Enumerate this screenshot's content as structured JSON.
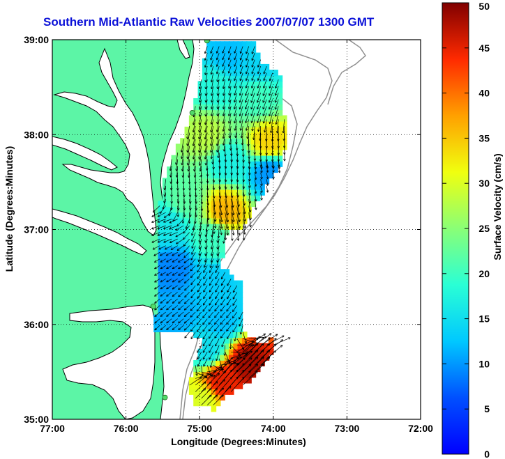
{
  "title": "Southern Mid-Atlantic Raw Velocities 2007/07/07 1300 GMT",
  "xlabel": "Longitude (Degrees:Minutes)",
  "ylabel": "Latitude (Degrees:Minutes)",
  "colorbar_label": "Surface Velocity (cm/s)",
  "map": {
    "lon_range": [
      -77,
      -72
    ],
    "lat_range": [
      35,
      39
    ],
    "x_ticks": [
      {
        "value": -77,
        "label": "77:00"
      },
      {
        "value": -76,
        "label": "76:00"
      },
      {
        "value": -75,
        "label": "75:00"
      },
      {
        "value": -74,
        "label": "74:00"
      },
      {
        "value": -73,
        "label": "73:00"
      },
      {
        "value": -72,
        "label": "72:00"
      }
    ],
    "y_ticks": [
      {
        "value": 39,
        "label": "39:00"
      },
      {
        "value": 38,
        "label": "38:00"
      },
      {
        "value": 37,
        "label": "37:00"
      },
      {
        "value": 36,
        "label": "36:00"
      },
      {
        "value": 35,
        "label": "35:00"
      }
    ],
    "grid": "dotted",
    "land_color": "#5cf5a6",
    "ocean_color": "#ffffff",
    "stations": [
      {
        "lon": -74.9,
        "lat": 38.99
      },
      {
        "lon": -75.1,
        "lat": 38.23
      },
      {
        "lon": -75.63,
        "lat": 36.19
      },
      {
        "lon": -75.47,
        "lat": 35.23
      }
    ]
  },
  "colorbar": {
    "min": 0,
    "max": 50,
    "ticks": [
      0,
      5,
      10,
      15,
      20,
      25,
      30,
      35,
      40,
      45,
      50
    ],
    "colormap": "jet"
  },
  "chart_data": {
    "type": "heatmap",
    "title": "Southern Mid-Atlantic Raw Velocities 2007/07/07 1300 GMT",
    "xlabel": "Longitude (Degrees:Minutes)",
    "ylabel": "Latitude (Degrees:Minutes)",
    "xlim": [
      -77,
      -72
    ],
    "ylim": [
      35,
      39
    ],
    "zlabel": "Surface Velocity (cm/s)",
    "zlim": [
      0,
      50
    ],
    "regions": [
      {
        "lon": -74.6,
        "lat": 38.85,
        "speed": 12,
        "dir_deg": 200
      },
      {
        "lon": -74.2,
        "lat": 38.75,
        "speed": 14,
        "dir_deg": 200
      },
      {
        "lon": -74.8,
        "lat": 38.5,
        "speed": 18,
        "dir_deg": 190
      },
      {
        "lon": -74.2,
        "lat": 38.4,
        "speed": 20,
        "dir_deg": 200
      },
      {
        "lon": -74.9,
        "lat": 38.0,
        "speed": 28,
        "dir_deg": 190
      },
      {
        "lon": -74.05,
        "lat": 37.92,
        "speed": 34,
        "dir_deg": 180
      },
      {
        "lon": -74.6,
        "lat": 37.7,
        "speed": 17,
        "dir_deg": 175
      },
      {
        "lon": -74.05,
        "lat": 37.6,
        "speed": 10,
        "dir_deg": 170
      },
      {
        "lon": -74.65,
        "lat": 37.2,
        "speed": 36,
        "dir_deg": 170
      },
      {
        "lon": -75.2,
        "lat": 37.3,
        "speed": 22,
        "dir_deg": 175
      },
      {
        "lon": -75.4,
        "lat": 37.05,
        "speed": 16,
        "dir_deg": 250
      },
      {
        "lon": -74.8,
        "lat": 36.9,
        "speed": 20,
        "dir_deg": 190
      },
      {
        "lon": -75.35,
        "lat": 36.6,
        "speed": 9,
        "dir_deg": 240
      },
      {
        "lon": -74.8,
        "lat": 36.45,
        "speed": 13,
        "dir_deg": 210
      },
      {
        "lon": -75.3,
        "lat": 36.1,
        "speed": 11,
        "dir_deg": 230
      },
      {
        "lon": -74.7,
        "lat": 36.05,
        "speed": 12,
        "dir_deg": 220
      },
      {
        "lon": -74.9,
        "lat": 35.75,
        "speed": 15,
        "dir_deg": 210
      },
      {
        "lon": -74.35,
        "lat": 35.6,
        "speed": 48,
        "dir_deg": 45
      },
      {
        "lon": -74.7,
        "lat": 35.4,
        "speed": 45,
        "dir_deg": 40
      },
      {
        "lon": -74.95,
        "lat": 35.2,
        "speed": 30,
        "dir_deg": 45
      }
    ]
  }
}
